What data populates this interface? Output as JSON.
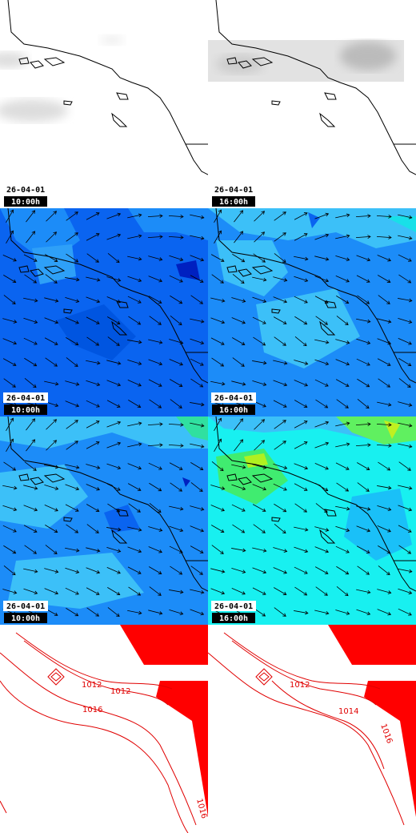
{
  "panels": [
    {
      "date": "26-04-01",
      "time": "10:00h"
    },
    {
      "date": "26-04-01",
      "time": "16:00h"
    },
    {
      "date": "26-04-01",
      "time": "10:00h"
    },
    {
      "date": "26-04-01",
      "time": "16:00h"
    },
    {
      "date": "26-04-01",
      "time": "10:00h"
    },
    {
      "date": "26-04-01",
      "time": "16:00h"
    }
  ],
  "pressure_labels": [
    "1012",
    "1012",
    "1016",
    "1016",
    "1012",
    "1014",
    "1016"
  ]
}
